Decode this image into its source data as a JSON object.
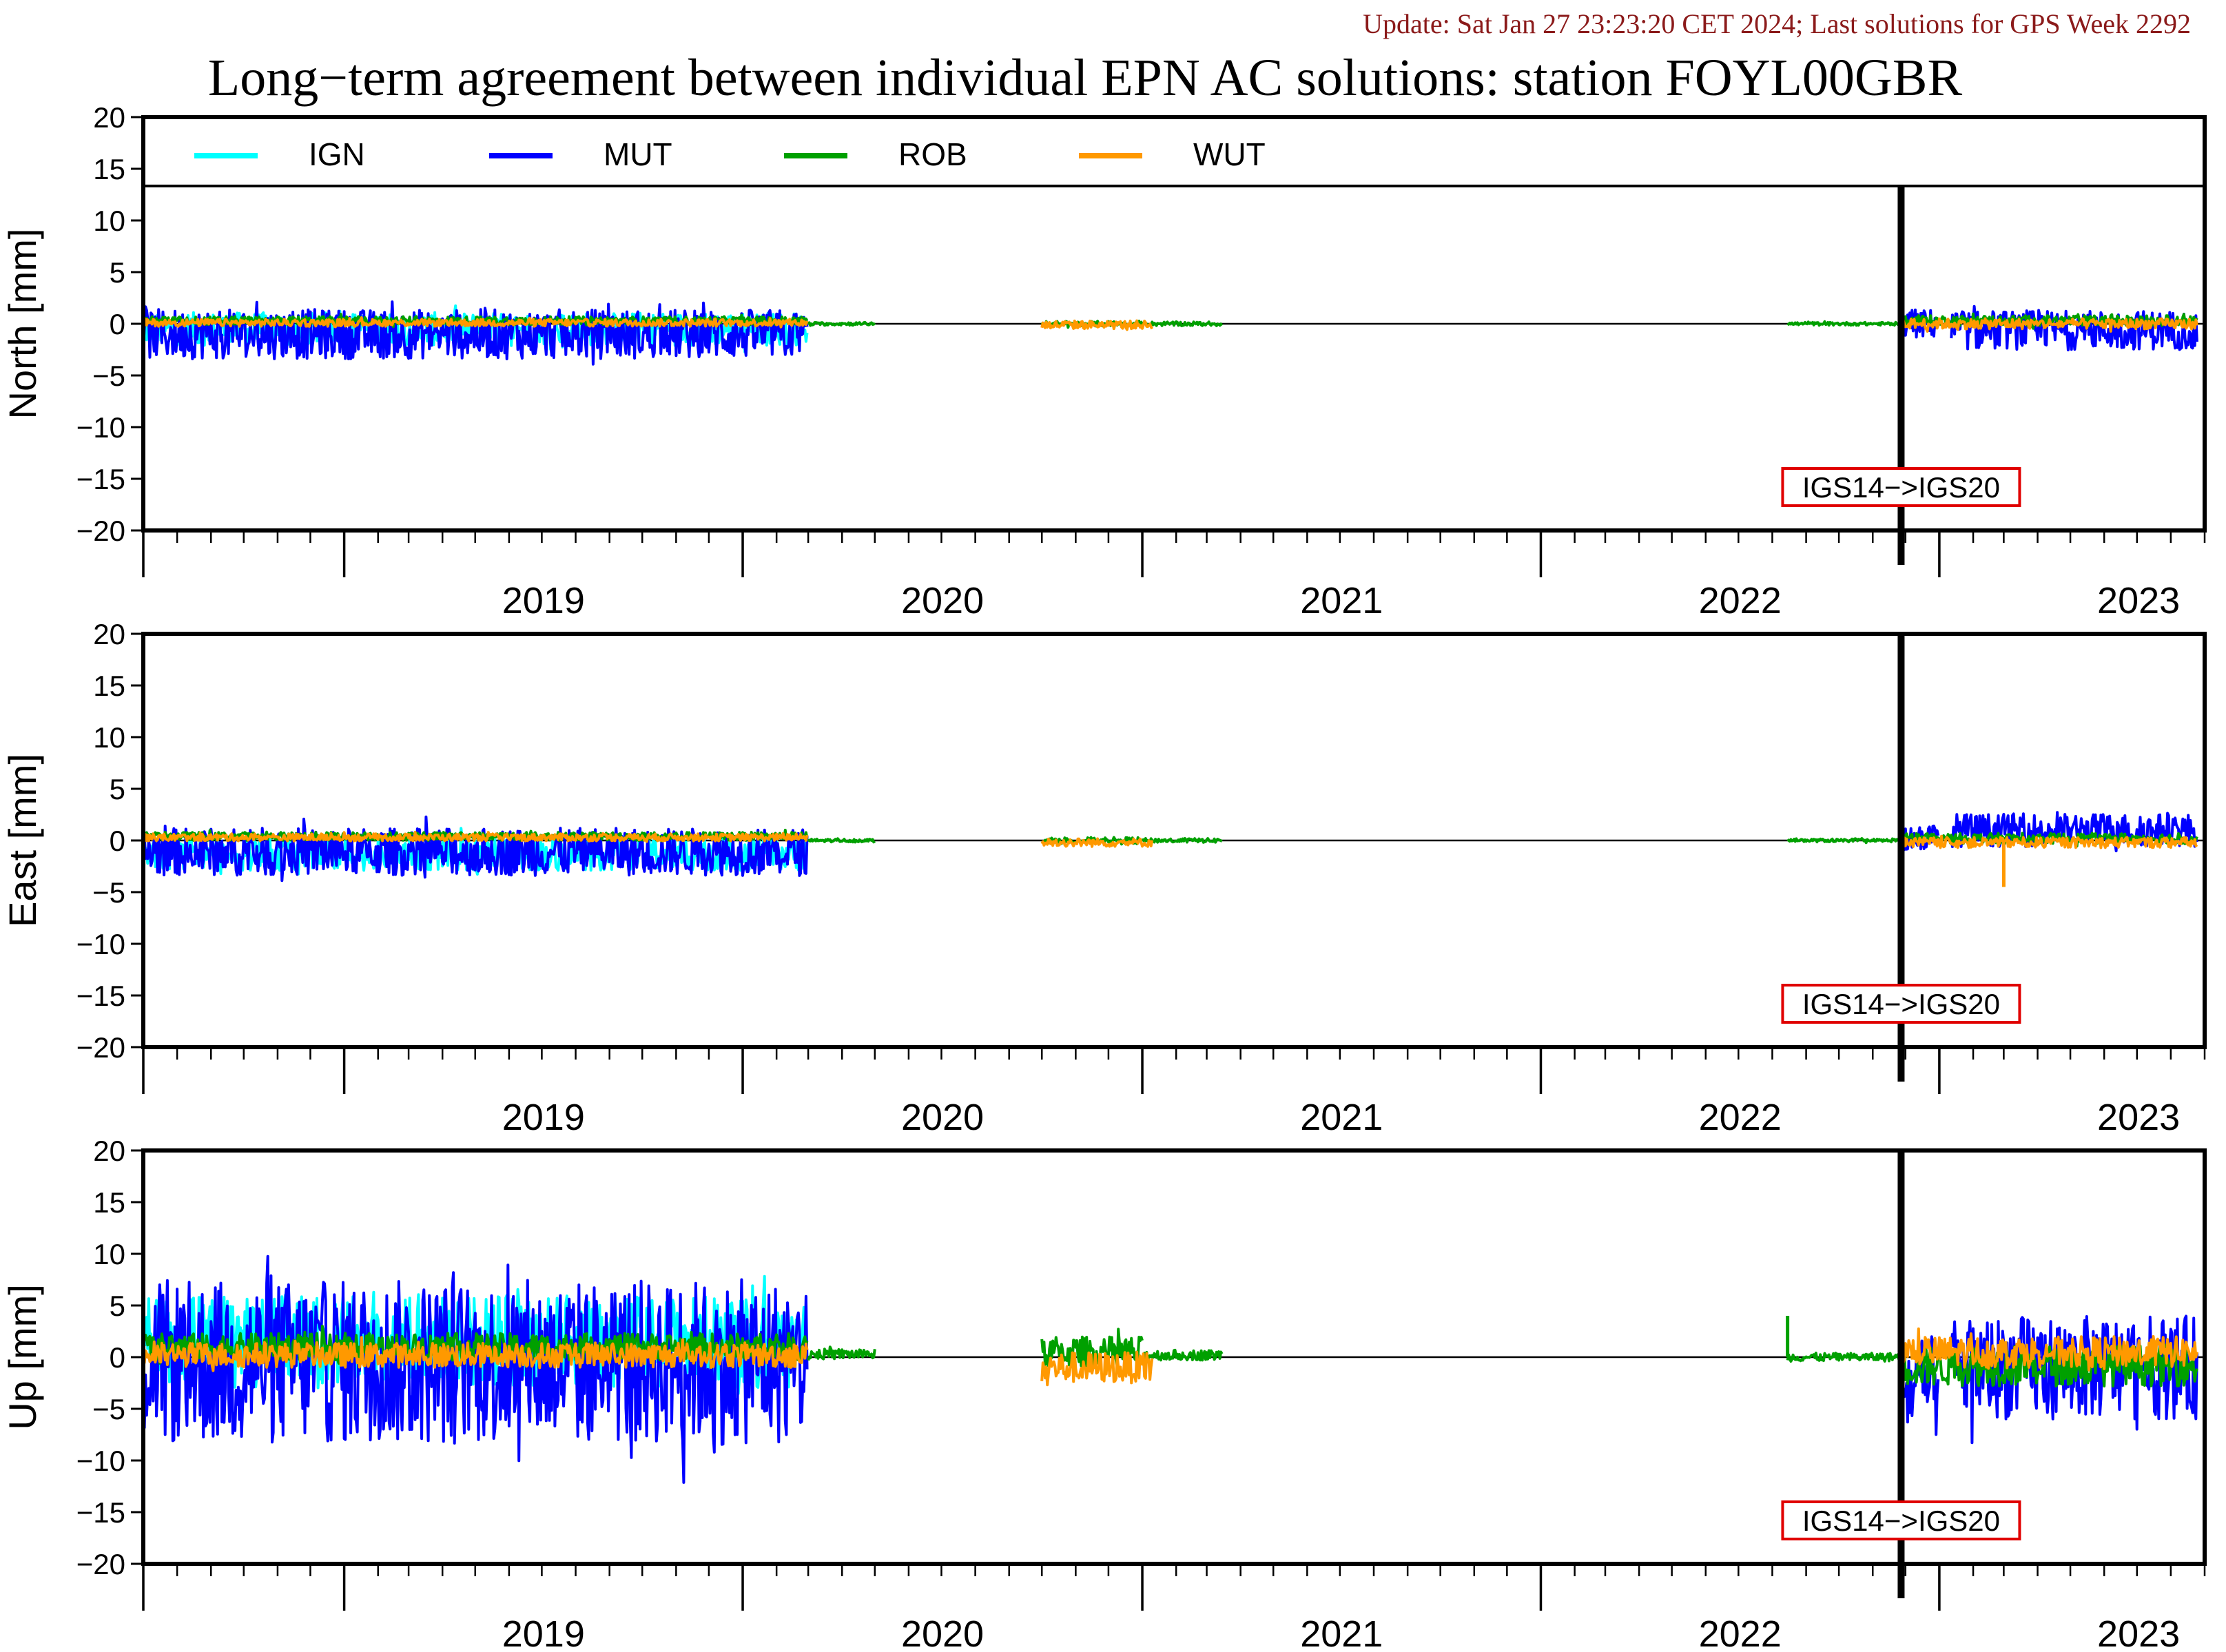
{
  "update_text": "Update: Sat Jan 27 23:23:20 CET 2024; Last solutions for GPS Week 2292",
  "title": "Long−term agreement between individual EPN AC solutions: station FOYL00GBR",
  "colors": {
    "IGN": "#00ffff",
    "MUT": "#0000ff",
    "ROB": "#00a000",
    "WUT": "#ff9900",
    "update_text": "#8b1a1a",
    "annotation_border": "#e00000"
  },
  "legend_placement": "top",
  "legend": [
    "IGN",
    "MUT",
    "ROB",
    "WUT"
  ],
  "chart_data": [
    {
      "type": "line",
      "panel": "North",
      "ylabel": "North [mm]",
      "ylim": [
        -20,
        20
      ],
      "yticks": [
        "20",
        "15",
        "10",
        "5",
        "0",
        "−5",
        "−10",
        "−15",
        "−20"
      ],
      "xlim": [
        "2018-07-01",
        "2023-09-01"
      ],
      "xticklabels": [
        "2019",
        "2020",
        "2021",
        "2022",
        "2023"
      ],
      "reference_line": 0,
      "event": {
        "date": "2022-11-27",
        "label": "IGS14−>IGS20"
      },
      "series": [
        {
          "name": "IGN",
          "segments": [
            {
              "start": "2018-07-01",
              "end": "2020-02-29",
              "mean": -0.5,
              "amp": 1.6
            }
          ]
        },
        {
          "name": "MUT",
          "segments": [
            {
              "start": "2018-07-01",
              "end": "2020-02-29",
              "mean": -1.0,
              "amp": 2.4
            },
            {
              "start": "2022-11-27",
              "end": "2022-12-31",
              "mean": 0.0,
              "amp": 1.4
            },
            {
              "start": "2023-01-12",
              "end": "2023-08-25",
              "mean": -0.6,
              "amp": 1.9
            }
          ]
        },
        {
          "name": "ROB",
          "segments": [
            {
              "start": "2018-07-01",
              "end": "2020-02-29",
              "mean": 0.3,
              "amp": 0.4
            },
            {
              "start": "2020-03-01",
              "end": "2020-05-01",
              "mean": 0.0,
              "amp": 0.15
            },
            {
              "start": "2020-10-01",
              "end": "2021-01-01",
              "mean": 0.0,
              "amp": 0.25
            },
            {
              "start": "2021-01-01",
              "end": "2021-03-15",
              "mean": 0.0,
              "amp": 0.2
            },
            {
              "start": "2022-08-15",
              "end": "2022-11-25",
              "mean": 0.0,
              "amp": 0.15
            },
            {
              "start": "2022-11-27",
              "end": "2023-08-25",
              "mean": 0.3,
              "amp": 0.5
            }
          ]
        },
        {
          "name": "WUT",
          "segments": [
            {
              "start": "2018-07-01",
              "end": "2020-02-29",
              "mean": 0.1,
              "amp": 0.35
            },
            {
              "start": "2020-10-01",
              "end": "2021-01-10",
              "mean": -0.1,
              "amp": 0.4
            },
            {
              "start": "2022-11-27",
              "end": "2023-08-25",
              "mean": 0.0,
              "amp": 0.5
            }
          ]
        }
      ]
    },
    {
      "type": "line",
      "panel": "East",
      "ylabel": "East [mm]",
      "ylim": [
        -20,
        20
      ],
      "yticks": [
        "20",
        "15",
        "10",
        "5",
        "0",
        "−5",
        "−10",
        "−15",
        "−20"
      ],
      "xlim": [
        "2018-07-01",
        "2023-09-01"
      ],
      "xticklabels": [
        "2019",
        "2020",
        "2021",
        "2022",
        "2023"
      ],
      "reference_line": 0,
      "event": {
        "date": "2022-11-27",
        "label": "IGS14−>IGS20"
      },
      "series": [
        {
          "name": "IGN",
          "segments": [
            {
              "start": "2018-07-01",
              "end": "2020-02-29",
              "mean": -1.3,
              "amp": 1.6
            }
          ]
        },
        {
          "name": "MUT",
          "segments": [
            {
              "start": "2018-07-01",
              "end": "2020-02-29",
              "mean": -1.1,
              "amp": 2.3
            },
            {
              "start": "2022-11-27",
              "end": "2022-12-31",
              "mean": 0.3,
              "amp": 1.3
            },
            {
              "start": "2023-01-12",
              "end": "2023-08-25",
              "mean": 1.0,
              "amp": 1.6
            }
          ]
        },
        {
          "name": "ROB",
          "segments": [
            {
              "start": "2018-07-01",
              "end": "2020-02-29",
              "mean": 0.4,
              "amp": 0.4
            },
            {
              "start": "2020-03-01",
              "end": "2020-05-01",
              "mean": 0.0,
              "amp": 0.15
            },
            {
              "start": "2020-10-01",
              "end": "2021-01-01",
              "mean": 0.0,
              "amp": 0.3
            },
            {
              "start": "2021-01-01",
              "end": "2021-03-15",
              "mean": 0.0,
              "amp": 0.2
            },
            {
              "start": "2022-08-15",
              "end": "2022-11-25",
              "mean": 0.0,
              "amp": 0.15
            },
            {
              "start": "2022-11-27",
              "end": "2023-08-25",
              "mean": 0.2,
              "amp": 0.5
            }
          ]
        },
        {
          "name": "WUT",
          "segments": [
            {
              "start": "2018-07-01",
              "end": "2020-02-29",
              "mean": 0.3,
              "amp": 0.35
            },
            {
              "start": "2020-10-01",
              "end": "2021-01-10",
              "mean": -0.2,
              "amp": 0.4
            },
            {
              "start": "2022-11-27",
              "end": "2023-08-25",
              "mean": -0.2,
              "amp": 0.5
            }
          ]
        }
      ],
      "spikes": [
        {
          "series": "WUT",
          "date": "2023-03-01",
          "value": -4.5
        }
      ]
    },
    {
      "type": "line",
      "panel": "Up",
      "ylabel": "Up [mm]",
      "ylim": [
        -20,
        20
      ],
      "yticks": [
        "20",
        "15",
        "10",
        "5",
        "0",
        "−5",
        "−10",
        "−15",
        "−20"
      ],
      "xlim": [
        "2018-07-01",
        "2023-09-01"
      ],
      "xticklabels": [
        "2019",
        "2020",
        "2021",
        "2022",
        "2023"
      ],
      "reference_line": 0,
      "event": {
        "date": "2022-11-27",
        "label": "IGS14−>IGS20"
      },
      "series": [
        {
          "name": "IGN",
          "segments": [
            {
              "start": "2018-07-01",
              "end": "2020-02-29",
              "mean": 1.5,
              "amp": 4.5
            }
          ]
        },
        {
          "name": "MUT",
          "segments": [
            {
              "start": "2018-07-01",
              "end": "2020-02-29",
              "mean": -0.5,
              "amp": 8.0
            },
            {
              "start": "2022-11-27",
              "end": "2022-12-31",
              "mean": -3.0,
              "amp": 5.0
            },
            {
              "start": "2023-01-12",
              "end": "2023-08-25",
              "mean": -1.0,
              "amp": 5.0
            }
          ]
        },
        {
          "name": "ROB",
          "segments": [
            {
              "start": "2018-07-01",
              "end": "2020-02-29",
              "mean": 1.0,
              "amp": 1.3
            },
            {
              "start": "2020-03-01",
              "end": "2020-05-01",
              "mean": 0.3,
              "amp": 0.5
            },
            {
              "start": "2020-10-01",
              "end": "2021-01-01",
              "mean": 0.5,
              "amp": 1.5
            },
            {
              "start": "2021-01-01",
              "end": "2021-03-15",
              "mean": 0.2,
              "amp": 0.5
            },
            {
              "start": "2022-08-15",
              "end": "2022-11-25",
              "mean": 0.0,
              "amp": 0.4
            },
            {
              "start": "2022-11-27",
              "end": "2023-08-25",
              "mean": -0.8,
              "amp": 2.0
            }
          ]
        },
        {
          "name": "WUT",
          "segments": [
            {
              "start": "2018-07-01",
              "end": "2020-02-29",
              "mean": 0.2,
              "amp": 1.2
            },
            {
              "start": "2020-10-01",
              "end": "2021-01-10",
              "mean": -1.0,
              "amp": 1.5
            },
            {
              "start": "2022-11-27",
              "end": "2023-08-25",
              "mean": 0.5,
              "amp": 1.5
            }
          ]
        }
      ],
      "spikes": [
        {
          "series": "ROB",
          "date": "2022-08-15",
          "value": 4.0
        }
      ]
    }
  ]
}
